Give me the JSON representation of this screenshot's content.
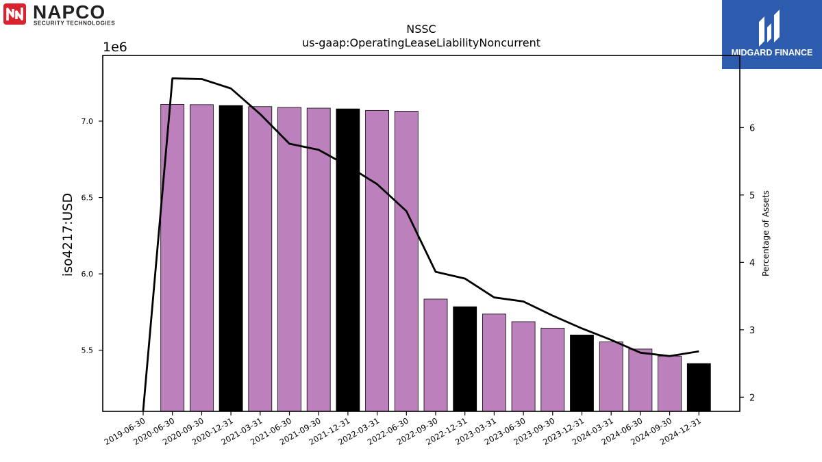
{
  "logos": {
    "left": {
      "name": "NAPCO",
      "tagline": "SECURITY TECHNOLOGIES",
      "mark_color": "#d9232e"
    },
    "right": {
      "name": "MIDGARD FINANCE",
      "background": "#2d5cae"
    }
  },
  "chart_data": {
    "type": "bar",
    "title": "NSSC",
    "subtitle": "us-gaap:OperatingLeaseLiabilityNoncurrent",
    "ylabel": "iso4217:USD",
    "y_offset_label": "1e6",
    "y2label": "Percentage of Assets",
    "categories": [
      "2019-06-30",
      "2020-06-30",
      "2020-09-30",
      "2020-12-31",
      "2021-03-31",
      "2021-06-30",
      "2021-09-30",
      "2021-12-31",
      "2022-03-31",
      "2022-06-30",
      "2022-09-30",
      "2022-12-31",
      "2023-03-31",
      "2023-06-30",
      "2023-09-30",
      "2023-12-31",
      "2024-03-31",
      "2024-06-30",
      "2024-09-30",
      "2024-12-31"
    ],
    "series": [
      {
        "kind": "bar",
        "values": [
          null,
          7110000,
          7108000,
          7102000,
          7095000,
          7090000,
          7085000,
          7080000,
          7070000,
          7065000,
          5835000,
          5785000,
          5737000,
          5687000,
          5645000,
          5600000,
          5555000,
          5508000,
          5462000,
          5413000
        ],
        "colors": [
          "#bc80bd",
          "#bc80bd",
          "#bc80bd",
          "#000000",
          "#bc80bd",
          "#bc80bd",
          "#bc80bd",
          "#000000",
          "#bc80bd",
          "#bc80bd",
          "#bc80bd",
          "#000000",
          "#bc80bd",
          "#bc80bd",
          "#bc80bd",
          "#000000",
          "#bc80bd",
          "#bc80bd",
          "#bc80bd",
          "#000000"
        ]
      },
      {
        "kind": "line",
        "axis": "right",
        "color": "#000000",
        "values": [
          1.8,
          6.73,
          6.72,
          6.58,
          6.2,
          5.76,
          5.67,
          5.43,
          5.16,
          4.76,
          3.86,
          3.76,
          3.48,
          3.42,
          3.21,
          3.02,
          2.85,
          2.66,
          2.61,
          2.68
        ]
      }
    ],
    "ylim": [
      5100000,
      7430000
    ],
    "yticks": [
      5500000,
      6000000,
      6500000,
      7000000
    ],
    "ytick_labels": [
      "5.5",
      "6.0",
      "6.5",
      "7.0"
    ],
    "y2lim": [
      1.79,
      7.07
    ],
    "y2ticks": [
      2,
      3,
      4,
      5,
      6
    ],
    "grid": false
  }
}
